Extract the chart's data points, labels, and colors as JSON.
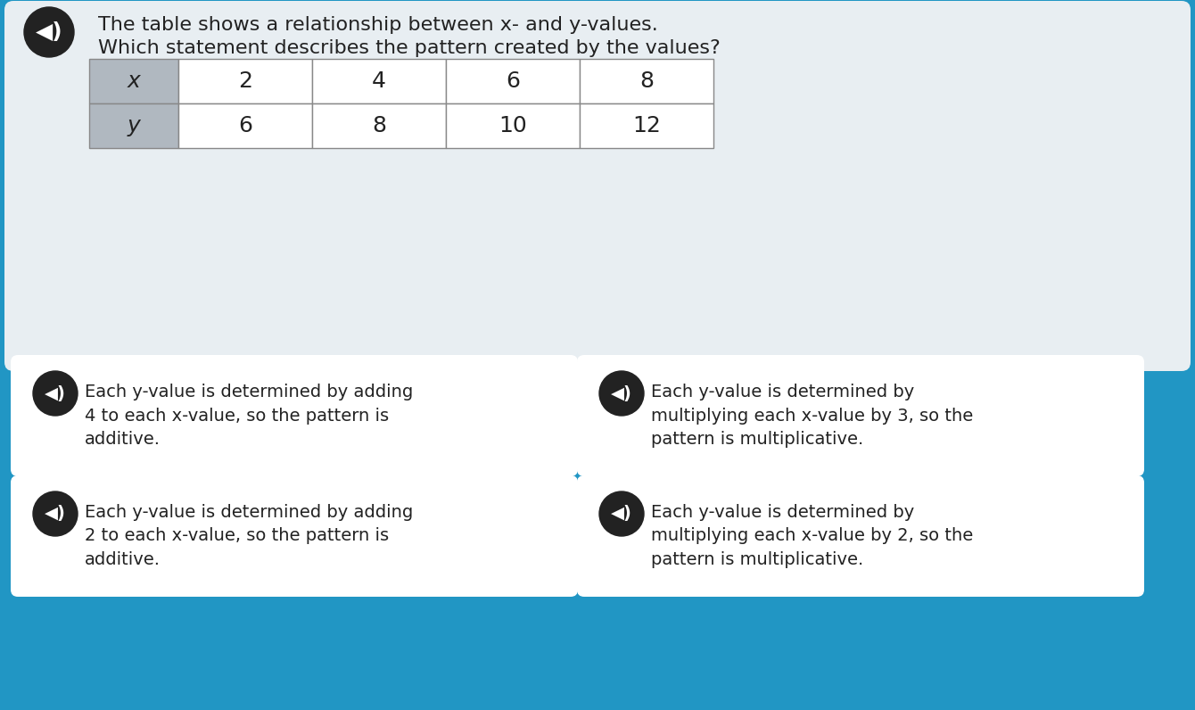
{
  "bg_color": "#2196C4",
  "question_bg": "#E8EEF2",
  "question_text_line1": "The table shows a relationship between x- and y-values.",
  "question_text_line2": "Which statement describes the pattern created by the values?",
  "table_header_bg": "#B0B8C0",
  "table_data_bg": "#FFFFFF",
  "table_border": "#AAAAAA",
  "table_x_label": "x",
  "table_y_label": "y",
  "table_x_values": [
    "2",
    "4",
    "6",
    "8"
  ],
  "table_y_values": [
    "6",
    "8",
    "10",
    "12"
  ],
  "answer_bg": "#FFFFFF",
  "answer_texts": [
    "Each y-value is determined by adding\n4 to each x-value, so the pattern is\nadditive.",
    "Each y-value is determined by\nmultiplying each x-value by 3, so the\npattern is multiplicative.",
    "Each y-value is determined by adding\n2 to each x-value, so the pattern is\nadditive.",
    "Each y-value is determined by\nmultiplying each x-value by 2, so the\npattern is multiplicative."
  ],
  "speaker_icon_color": "#222222",
  "speaker_icon_bg": "#222222",
  "font_color": "#222222",
  "title_font_size": 16,
  "answer_font_size": 14,
  "table_font_size": 18
}
